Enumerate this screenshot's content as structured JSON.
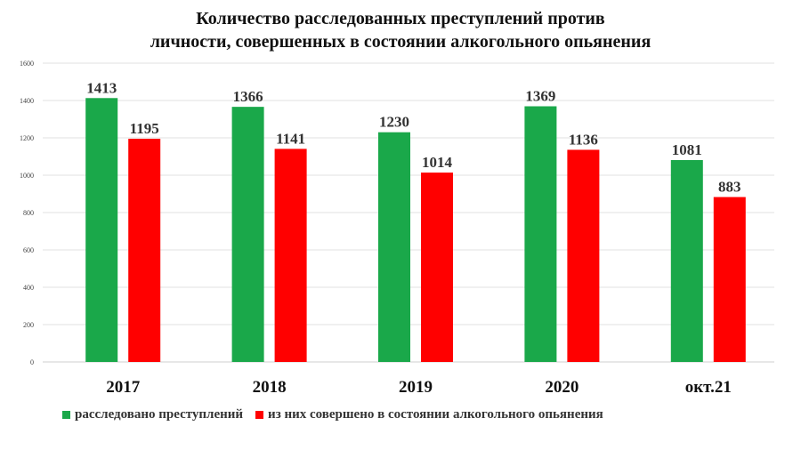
{
  "chart_data": {
    "type": "bar",
    "title_lines": [
      "Количество расследованных преступлений против",
      "личности, совершенных в состоянии алкогольного опьянения"
    ],
    "categories": [
      "2017",
      "2018",
      "2019",
      "2020",
      "окт.21"
    ],
    "series": [
      {
        "name": "расследовано преступлений",
        "color": "#1aa84a",
        "values": [
          1413,
          1366,
          1230,
          1369,
          1081
        ]
      },
      {
        "name": "из них совершено в состоянии алкогольного опьянения",
        "color": "#ff0000",
        "values": [
          1195,
          1141,
          1014,
          1136,
          883
        ]
      }
    ],
    "ylim": [
      0,
      1600
    ],
    "yticks": [
      0,
      200,
      400,
      600,
      800,
      1000,
      1200,
      1400,
      1600
    ],
    "grid": true,
    "legend_position": "bottom",
    "xlabel": "",
    "ylabel": ""
  }
}
